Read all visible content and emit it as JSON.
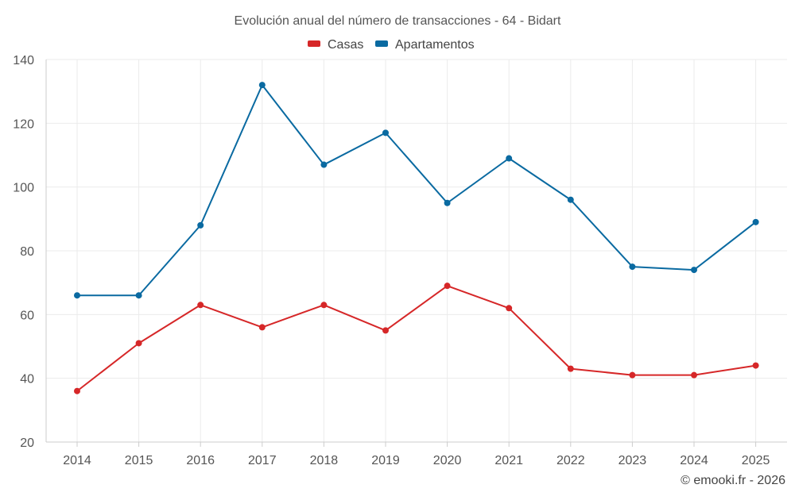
{
  "chart_data": {
    "type": "line",
    "title": "Evolución anual del número de transacciones - 64 - Bidart",
    "categories": [
      "2014",
      "2015",
      "2016",
      "2017",
      "2018",
      "2019",
      "2020",
      "2021",
      "2022",
      "2023",
      "2024",
      "2025"
    ],
    "series": [
      {
        "name": "Casas",
        "color": "#d62728",
        "values": [
          36,
          51,
          63,
          56,
          63,
          55,
          69,
          62,
          43,
          41,
          41,
          44
        ]
      },
      {
        "name": "Apartamentos",
        "color": "#0a6aa1",
        "values": [
          66,
          66,
          88,
          132,
          107,
          117,
          95,
          109,
          96,
          75,
          74,
          89
        ]
      }
    ],
    "ylim": [
      20,
      140
    ],
    "yticks": [
      20,
      40,
      60,
      80,
      100,
      120,
      140
    ],
    "legend_position": "top-center",
    "grid": true,
    "xlabel": "",
    "ylabel": ""
  },
  "credit": "© emooki.fr - 2026"
}
